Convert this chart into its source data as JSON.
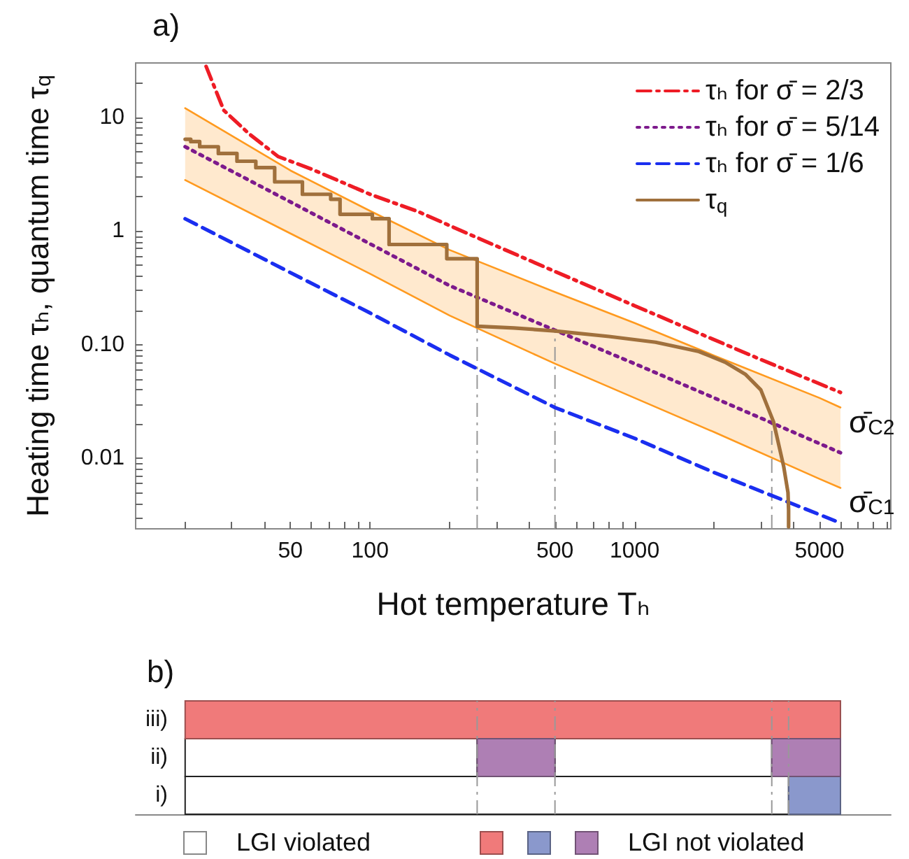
{
  "chart_data": [
    {
      "type": "line",
      "title": "a)",
      "xlabel": "Hot temperature Tₕ",
      "ylabel": "Heating time τₕ, quantum time τ$_{q}$",
      "log": "xy",
      "xlim": [
        13,
        9300
      ],
      "ylim": [
        0.0024,
        30
      ],
      "xticks": [
        {
          "value": 20,
          "label": null
        },
        {
          "value": 30,
          "label": null
        },
        {
          "value": 40,
          "label": null
        },
        50,
        {
          "value": 60,
          "label": null
        },
        {
          "value": 70,
          "label": null
        },
        {
          "value": 80,
          "label": null
        },
        {
          "value": 90,
          "label": null
        },
        100,
        {
          "value": 200,
          "label": null
        },
        {
          "value": 300,
          "label": null
        },
        {
          "value": 400,
          "label": null
        },
        500,
        {
          "value": 600,
          "label": null
        },
        {
          "value": 700,
          "label": null
        },
        {
          "value": 800,
          "label": null
        },
        {
          "value": 900,
          "label": null
        },
        1000,
        {
          "value": 2000,
          "label": null
        },
        {
          "value": 3000,
          "label": null
        },
        {
          "value": 4000,
          "label": null
        },
        5000,
        {
          "value": 6000,
          "label": null
        },
        {
          "value": 7000,
          "label": null
        },
        {
          "value": 8000,
          "label": null
        },
        {
          "value": 9000,
          "label": null
        }
      ],
      "yticks": [
        {
          "value": 0.003,
          "label": null
        },
        {
          "value": 0.004,
          "label": null
        },
        {
          "value": 0.005,
          "label": null
        },
        {
          "value": 0.006,
          "label": null
        },
        {
          "value": 0.007,
          "label": null
        },
        {
          "value": 0.008,
          "label": null
        },
        {
          "value": 0.009,
          "label": null
        },
        0.01,
        {
          "value": 0.02,
          "label": null
        },
        {
          "value": 0.03,
          "label": null
        },
        {
          "value": 0.04,
          "label": null
        },
        {
          "value": 0.05,
          "label": null
        },
        {
          "value": 0.06,
          "label": null
        },
        {
          "value": 0.07,
          "label": null
        },
        {
          "value": 0.08,
          "label": null
        },
        {
          "value": 0.09,
          "label": null
        },
        {
          "value": 0.1,
          "label": "0.10"
        },
        {
          "value": 0.2,
          "label": null
        },
        {
          "value": 0.3,
          "label": null
        },
        {
          "value": 0.4,
          "label": null
        },
        {
          "value": 0.5,
          "label": null
        },
        {
          "value": 0.6,
          "label": null
        },
        {
          "value": 0.7,
          "label": null
        },
        {
          "value": 0.8,
          "label": null
        },
        {
          "value": 0.9,
          "label": null
        },
        1,
        {
          "value": 2,
          "label": null
        },
        {
          "value": 3,
          "label": null
        },
        {
          "value": 4,
          "label": null
        },
        {
          "value": 5,
          "label": null
        },
        {
          "value": 6,
          "label": null
        },
        {
          "value": 7,
          "label": null
        },
        {
          "value": 8,
          "label": null
        },
        {
          "value": 9,
          "label": null
        },
        10,
        {
          "value": 20,
          "label": null
        }
      ],
      "grid": false,
      "legend": "top right",
      "marker": "none",
      "series": [
        {
          "name": "τₕ for σ̄ = 2/3",
          "color": "#ee1c25",
          "line_style": "dashdot",
          "x": [
            24,
            28,
            35,
            45,
            60,
            100,
            153,
            222,
            500,
            1000,
            1750,
            3000,
            6000
          ],
          "values": [
            28,
            11.5,
            7.1,
            4.5,
            3.5,
            2.1,
            1.47,
            1.0,
            0.44,
            0.22,
            0.126,
            0.074,
            0.038
          ]
        },
        {
          "name": "τₕ for σ̄ = 5/14",
          "color": "#7d1a8c",
          "line_style": "dotted",
          "x": [
            20,
            50,
            100,
            200,
            500,
            1000,
            2000,
            5000,
            6000
          ],
          "values": [
            5.5,
            1.8,
            0.77,
            0.33,
            0.134,
            0.068,
            0.034,
            0.0135,
            0.0112
          ],
          "lower": [
            2.8,
            0.95,
            0.42,
            0.18,
            0.068,
            0.034,
            0.017,
            0.0066,
            0.0055
          ],
          "upper": [
            12,
            3.4,
            1.5,
            0.68,
            0.29,
            0.155,
            0.08,
            0.034,
            0.028
          ]
        },
        {
          "color": "#ff9a1f",
          "line_style": "solid",
          "x": [
            20,
            50,
            100,
            200,
            500,
            1000,
            2000,
            5000,
            6000
          ],
          "values": [
            12,
            3.4,
            1.5,
            0.68,
            0.29,
            0.155,
            0.08,
            0.034,
            0.028
          ]
        },
        {
          "color": "#ff9a1f",
          "line_style": "solid",
          "x": [
            20,
            50,
            100,
            200,
            500,
            1000,
            2000,
            5000,
            6000
          ],
          "values": [
            2.8,
            0.95,
            0.42,
            0.18,
            0.068,
            0.034,
            0.017,
            0.0066,
            0.0055
          ]
        },
        {
          "name": "τₕ for σ̄ = 1/6",
          "color": "#1a2ef0",
          "line_style": "dashed",
          "x": [
            20,
            50,
            100,
            200,
            500,
            1000,
            2000,
            5000,
            6000
          ],
          "values": [
            1.28,
            0.43,
            0.19,
            0.081,
            0.028,
            0.015,
            0.0075,
            0.0032,
            0.0027
          ]
        },
        {
          "name": "τ$_{q}$",
          "color": "#a0703c",
          "line_style": "solid",
          "x": [
            20,
            21,
            21,
            22.7,
            22.7,
            26.7,
            26.7,
            31.4,
            31.4,
            37,
            37,
            43.6,
            43.6,
            55.5,
            55.5,
            71,
            71,
            77,
            77,
            102,
            102,
            118,
            118,
            195,
            195,
            254,
            254,
            350,
            500,
            800,
            1200,
            1750,
            2200,
            2620,
            3000,
            3350,
            3660,
            3800,
            3820,
            3820
          ],
          "values": [
            6.4,
            6.4,
            6.1,
            6.1,
            5.5,
            5.5,
            4.8,
            4.8,
            4.1,
            4.1,
            3.6,
            3.6,
            2.7,
            2.7,
            2.1,
            2.1,
            1.9,
            1.9,
            1.4,
            1.4,
            1.28,
            1.28,
            0.76,
            0.76,
            0.57,
            0.57,
            0.145,
            0.14,
            0.132,
            0.118,
            0.105,
            0.087,
            0.07,
            0.055,
            0.04,
            0.021,
            0.0085,
            0.005,
            0.0035,
            0.0025
          ]
        }
      ],
      "ref_lines": [
        {
          "axis": "x",
          "value": 254,
          "label": null,
          "color": "#999999",
          "line_style": "dashdot"
        },
        {
          "axis": "x",
          "value": 500,
          "label": null,
          "color": "#999999",
          "line_style": "dashdot"
        },
        {
          "axis": "x",
          "value": 3300,
          "label": null,
          "color": "#999999",
          "line_style": "dashdot"
        }
      ],
      "annotations": [
        {
          "text": "σ̄$_{C2}$",
          "x": 6000,
          "y": 0.028
        },
        {
          "text": "σ̄$_{C1}$",
          "x": 6000,
          "y": 0.0055
        }
      ]
    },
    {
      "type": "bar",
      "title": "b)",
      "orientation": "horizontal",
      "categories": [
        "iii)",
        "ii)",
        "i)"
      ],
      "log": "x",
      "xlim": [
        13,
        9300
      ],
      "tick_labels": "y",
      "legend": "bottom",
      "series": [
        {
          "name": "LGI violated",
          "color": "#ffffff",
          "values": [
            null,
            234,
            3800
          ],
          "base": [
            null,
            20,
            20
          ]
        },
        {
          "color": "#ffffff",
          "values": [
            null,
            2800,
            null
          ],
          "base": [
            null,
            500,
            null
          ]
        },
        {
          "color": "#f07a7a",
          "values": [
            5980,
            null,
            null
          ],
          "base": [
            20,
            null,
            null
          ]
        },
        {
          "color": "#8a98cc",
          "values": [
            null,
            null,
            2180
          ],
          "base": [
            null,
            null,
            3820
          ]
        },
        {
          "name": "LGI not violated",
          "color": "#ae7fb4",
          "values": [
            null,
            246,
            null
          ],
          "base": [
            null,
            254,
            null
          ]
        },
        {
          "color": "#ae7fb4",
          "values": [
            null,
            2700,
            null
          ],
          "base": [
            null,
            3300,
            null
          ]
        }
      ],
      "ref_lines": [
        {
          "axis": "x",
          "value": 254,
          "label": null,
          "color": "#999999",
          "line_style": "dashdot"
        },
        {
          "axis": "x",
          "value": 500,
          "label": null,
          "color": "#999999",
          "line_style": "dashdot"
        },
        {
          "axis": "x",
          "value": 3300,
          "label": null,
          "color": "#999999",
          "line_style": "dashdot"
        },
        {
          "axis": "x",
          "value": 3820,
          "label": null,
          "color": "#999999",
          "line_style": "dashdot"
        }
      ]
    }
  ]
}
